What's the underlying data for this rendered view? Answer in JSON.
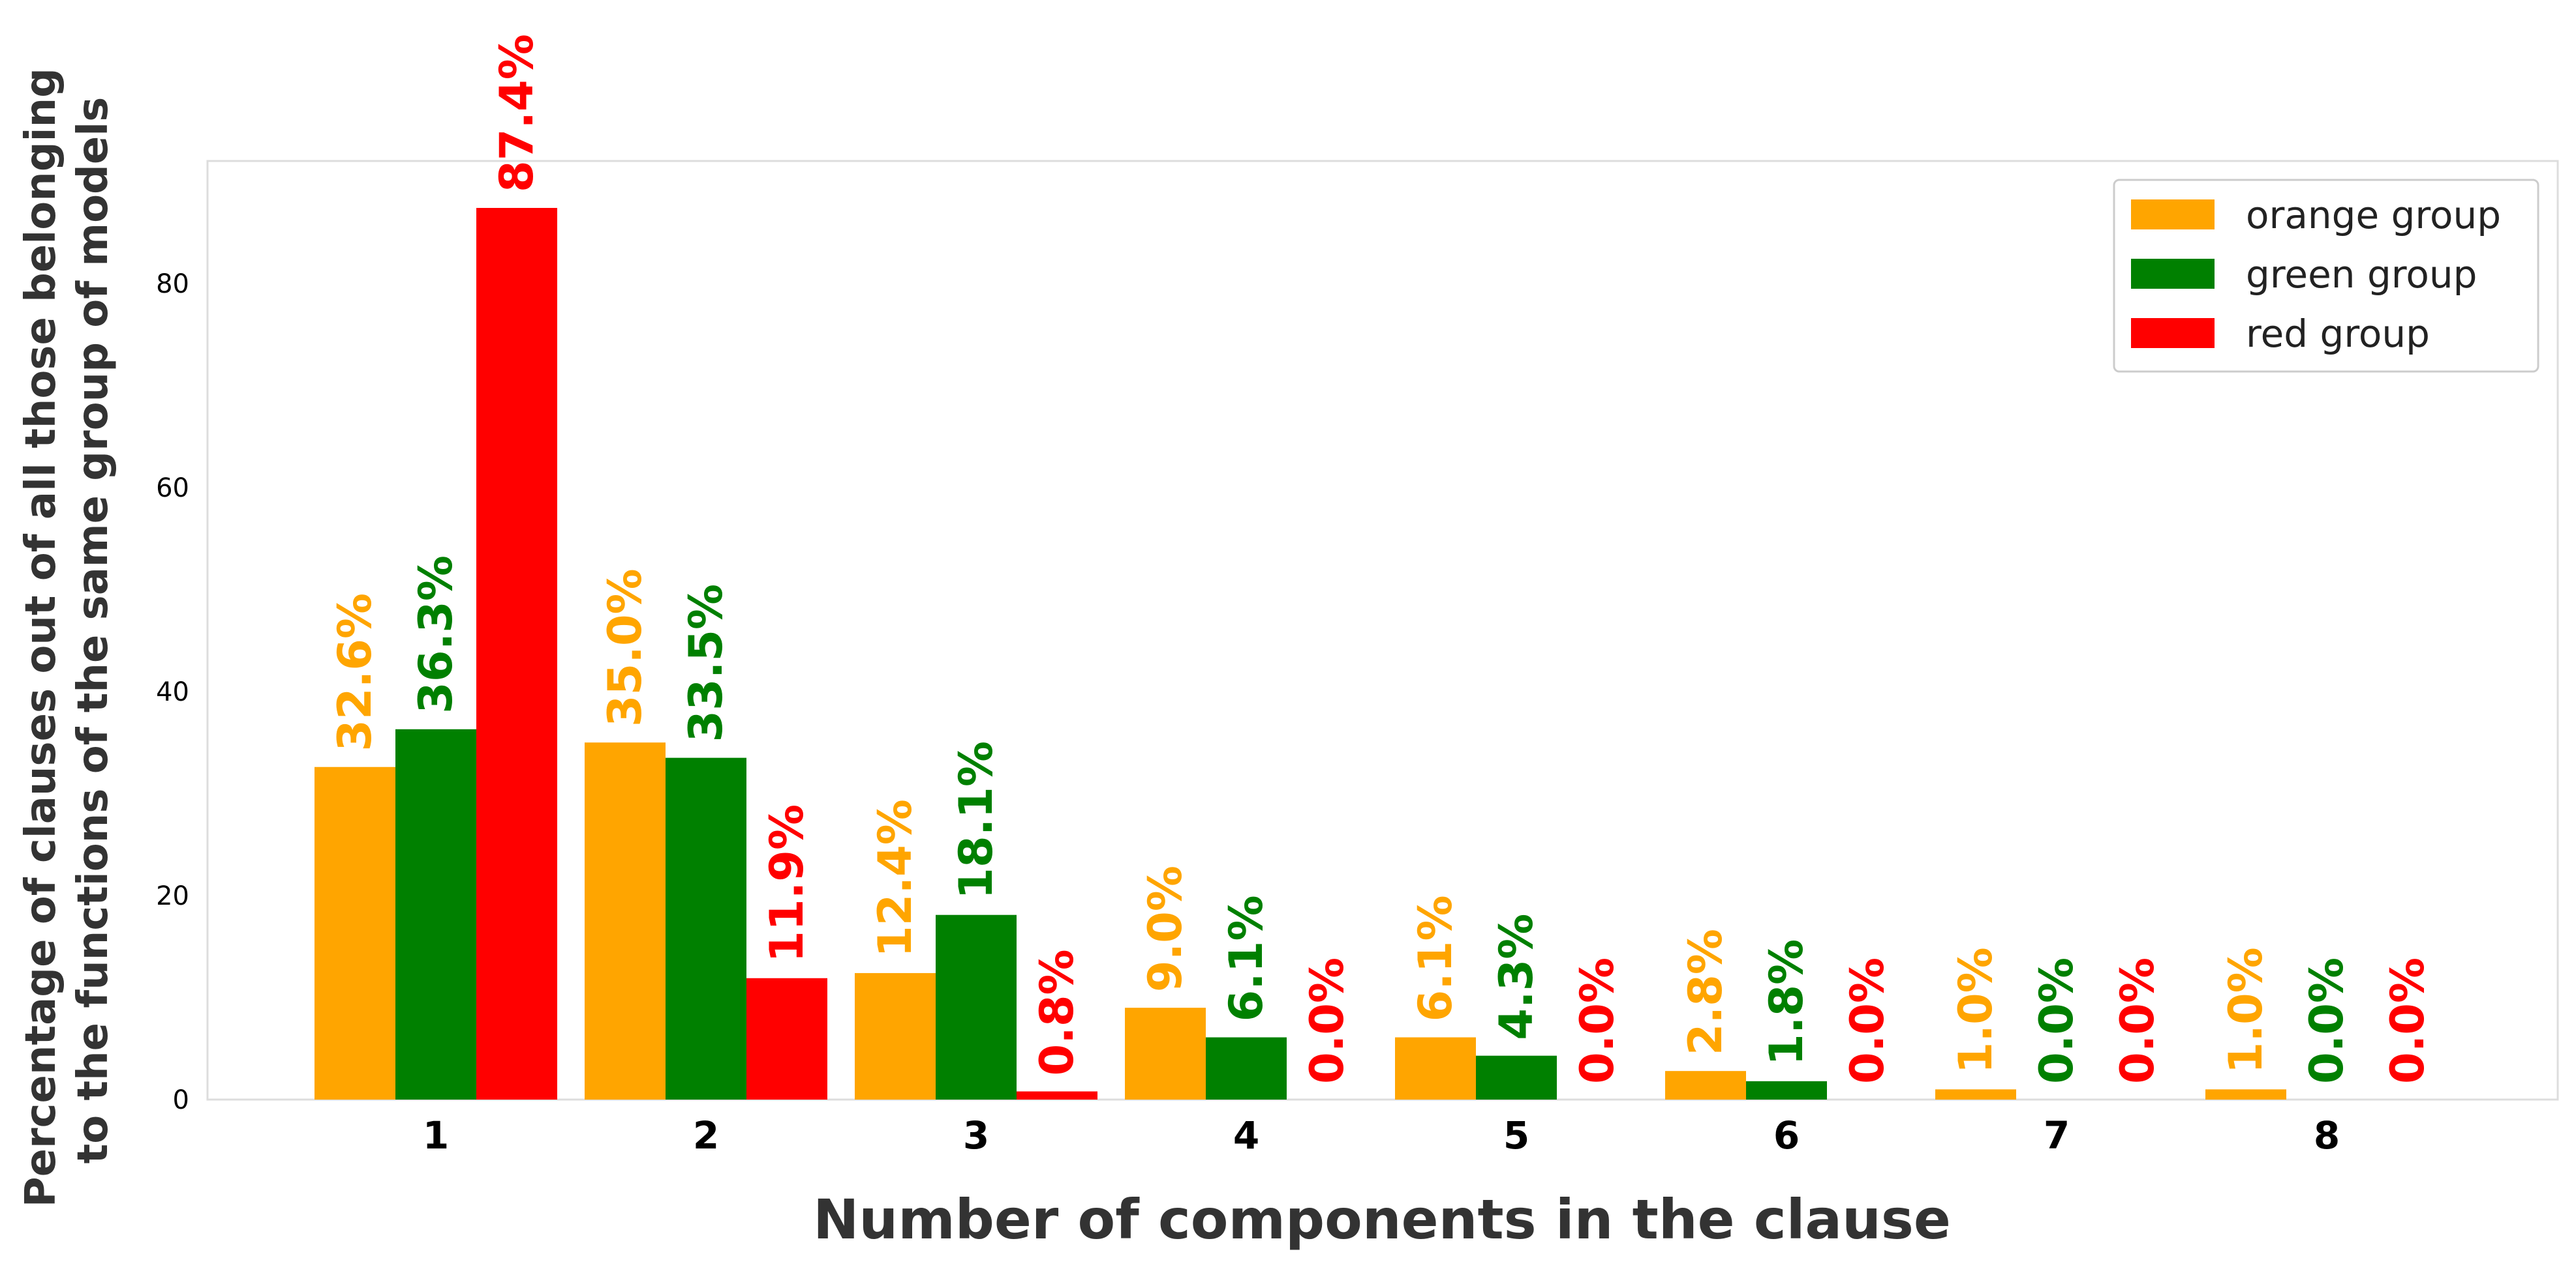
{
  "chart_data": {
    "type": "bar",
    "categories": [
      "1",
      "2",
      "3",
      "4",
      "5",
      "6",
      "7",
      "8"
    ],
    "series": [
      {
        "name": "orange group",
        "color": "#FFA500",
        "values": [
          32.6,
          35.0,
          12.4,
          9.0,
          6.1,
          2.8,
          1.0,
          1.0
        ],
        "labels": [
          "32.6%",
          "35.0%",
          "12.4%",
          "9.0%",
          "6.1%",
          "2.8%",
          "1.0%",
          "1.0%"
        ]
      },
      {
        "name": "green group",
        "color": "#008000",
        "values": [
          36.3,
          33.5,
          18.1,
          6.1,
          4.3,
          1.8,
          0.0,
          0.0
        ],
        "labels": [
          "36.3%",
          "33.5%",
          "18.1%",
          "6.1%",
          "4.3%",
          "1.8%",
          "0.0%",
          "0.0%"
        ]
      },
      {
        "name": "red group",
        "color": "#FF0000",
        "values": [
          87.4,
          11.9,
          0.8,
          0.0,
          0.0,
          0.0,
          0.0,
          0.0
        ],
        "labels": [
          "87.4%",
          "11.9%",
          "0.8%",
          "0.0%",
          "0.0%",
          "0.0%",
          "0.0%",
          "0.0%"
        ]
      }
    ],
    "xlabel": "Number of components in the clause",
    "ylabel_lines": [
      "Percentage of clauses out of all those belonging",
      "to the functions of the same group of models"
    ],
    "ylim": [
      0,
      92
    ],
    "yticks": [
      0,
      20,
      40,
      60,
      80
    ],
    "grid": false,
    "legend_position": "top-right"
  }
}
